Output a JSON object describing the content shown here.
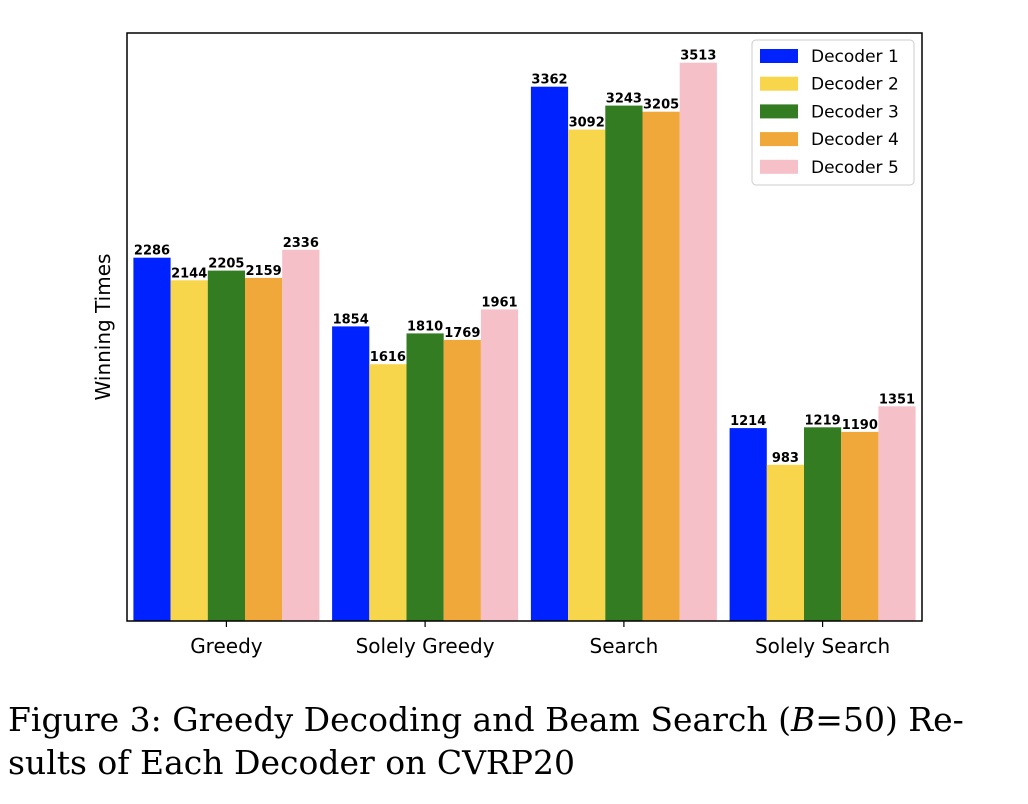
{
  "chart_data": {
    "type": "bar",
    "title": "",
    "xlabel": "",
    "ylabel": "Winning Times",
    "ylim": [
      0,
      3700
    ],
    "grid": false,
    "legend_position": "top-right",
    "categories": [
      "Greedy",
      "Solely Greedy",
      "Search",
      "Solely Search"
    ],
    "series": [
      {
        "name": "Decoder 1",
        "color": "#0022ff",
        "values": [
          2286,
          1854,
          3362,
          1214
        ]
      },
      {
        "name": "Decoder 2",
        "color": "#f8d64b",
        "values": [
          2144,
          1616,
          3092,
          983
        ]
      },
      {
        "name": "Decoder 3",
        "color": "#347c21",
        "values": [
          2205,
          1810,
          3243,
          1219
        ]
      },
      {
        "name": "Decoder 4",
        "color": "#f0a83a",
        "values": [
          2159,
          1769,
          3205,
          1190
        ]
      },
      {
        "name": "Decoder 5",
        "color": "#f5c0c8",
        "values": [
          2336,
          1961,
          3513,
          1351
        ]
      }
    ]
  },
  "caption": {
    "line1_prefix": "Figure 3: Greedy Decoding and Beam Search (",
    "line1_var": "B",
    "line1_suffix": "=50) Re-",
    "line2": "sults of Each Decoder on CVRP20"
  }
}
